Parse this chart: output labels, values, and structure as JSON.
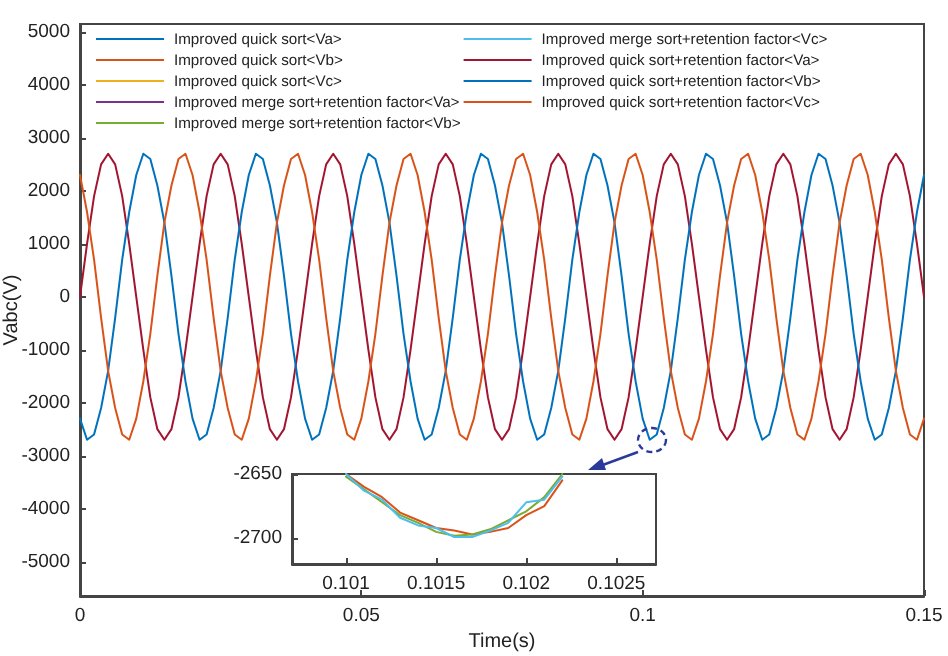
{
  "chart_data": [
    {
      "type": "line",
      "xlabel": "Time(s)",
      "ylabel": "Vabc(V)",
      "legend": "top",
      "xlim": [
        0,
        0.15
      ],
      "xticks": [
        0,
        0.05,
        0.1,
        0.15
      ],
      "ylim": [
        -5650,
        5150
      ],
      "yticks": [
        -5000,
        -4000,
        -3000,
        -2000,
        -1000,
        0,
        1000,
        2000,
        3000,
        4000,
        5000
      ],
      "x": [
        0,
        0.00125,
        0.0025,
        0.00375,
        0.005,
        0.00625,
        0.0075,
        0.00875,
        0.01,
        0.01125,
        0.0125,
        0.01375,
        0.015,
        0.01625,
        0.0175,
        0.01875,
        0.02,
        0.02125,
        0.0225,
        0.02375,
        0.025,
        0.02625,
        0.0275,
        0.02875,
        0.03,
        0.03125,
        0.0325,
        0.03375,
        0.035,
        0.03625,
        0.0375,
        0.03875,
        0.04,
        0.04125,
        0.0425,
        0.04375,
        0.045,
        0.04625,
        0.0475,
        0.04875,
        0.05,
        0.05125,
        0.0525,
        0.05375,
        0.055,
        0.05625,
        0.0575,
        0.05875,
        0.06,
        0.06125,
        0.0625,
        0.06375,
        0.065,
        0.06625,
        0.0675,
        0.06875,
        0.07,
        0.07125,
        0.0725,
        0.07375,
        0.075,
        0.07625,
        0.0775,
        0.07875,
        0.08,
        0.08125,
        0.0825,
        0.08375,
        0.085,
        0.08625,
        0.0875,
        0.08875,
        0.09,
        0.09125,
        0.0925,
        0.09375,
        0.095,
        0.09625,
        0.0975,
        0.09875,
        0.1,
        0.10125,
        0.1025,
        0.10375,
        0.105,
        0.10625,
        0.1075,
        0.10875,
        0.11,
        0.11125,
        0.1125,
        0.11375,
        0.115,
        0.11625,
        0.1175,
        0.11875,
        0.12,
        0.12125,
        0.1225,
        0.12375,
        0.125,
        0.12625,
        0.1275,
        0.12875,
        0.13,
        0.13125,
        0.1325,
        0.13375,
        0.135,
        0.13625,
        0.1375,
        0.13875,
        0.14,
        0.14125,
        0.1425,
        0.14375,
        0.145,
        0.14625,
        0.1475,
        0.14875,
        0.15
      ],
      "series": [
        {
          "name": "Improved quick sort<Va>",
          "color": "#0072bd",
          "values": [
            null,
            null,
            null,
            null,
            null,
            null,
            null,
            null,
            null,
            null,
            null,
            null,
            null,
            null,
            null,
            null,
            null,
            null,
            null,
            null,
            null,
            null,
            null,
            null,
            null,
            null,
            null,
            null,
            null,
            null,
            null,
            null,
            null,
            null,
            null,
            null,
            null,
            null,
            null,
            null,
            null,
            null,
            null,
            null,
            null,
            null,
            null,
            null,
            null,
            null,
            null,
            null,
            null,
            null,
            null,
            null,
            null,
            null,
            null,
            null,
            null,
            null,
            null,
            null,
            null,
            null,
            null,
            null,
            null,
            null,
            null,
            null,
            null,
            null,
            null,
            null,
            null,
            null,
            null,
            null,
            null,
            null,
            null,
            null,
            null,
            null,
            null,
            null,
            null,
            null,
            null,
            null,
            null,
            null,
            null,
            null,
            null,
            null,
            null,
            null,
            null,
            null,
            null,
            null,
            null,
            null,
            null,
            null,
            null,
            null,
            null,
            null,
            null,
            null,
            null,
            null,
            null,
            null,
            null,
            null,
            null
          ]
        },
        {
          "name": "Improved quick sort<Vb>",
          "color": "#d95319",
          "values": [
            null,
            null,
            null,
            null,
            null,
            null,
            null,
            null,
            null,
            null,
            null,
            null,
            null,
            null,
            null,
            null,
            null,
            null,
            null,
            null,
            null,
            null,
            null,
            null,
            null,
            null,
            null,
            null,
            null,
            null,
            null,
            null,
            null,
            null,
            null,
            null,
            null,
            null,
            null,
            null,
            null,
            null,
            null,
            null,
            null,
            null,
            null,
            null,
            null,
            null,
            null,
            null,
            null,
            null,
            null,
            null,
            null,
            null,
            null,
            null,
            null,
            null,
            null,
            null,
            null,
            null,
            null,
            null,
            null,
            null,
            null,
            null,
            null,
            null,
            null,
            null,
            null,
            null,
            null,
            null,
            null,
            null,
            null,
            null,
            null,
            null,
            null,
            null,
            null,
            null,
            null,
            null,
            null,
            null,
            null,
            null,
            null,
            null,
            null,
            null,
            null,
            null,
            null,
            null,
            null,
            null,
            null,
            null,
            null,
            null,
            null,
            null,
            null,
            null,
            null,
            null,
            null,
            null,
            null,
            null,
            null
          ]
        },
        {
          "name": "Improved quick sort<Vc>",
          "color": "#edb120",
          "values": [
            null,
            null,
            null,
            null,
            null,
            null,
            null,
            null,
            null,
            null,
            null,
            null,
            null,
            null,
            null,
            null,
            null,
            null,
            null,
            null,
            null,
            null,
            null,
            null,
            null,
            null,
            null,
            null,
            null,
            null,
            null,
            null,
            null,
            null,
            null,
            null,
            null,
            null,
            null,
            null,
            null,
            null,
            null,
            null,
            null,
            null,
            null,
            null,
            null,
            null,
            null,
            null,
            null,
            null,
            null,
            null,
            null,
            null,
            null,
            null,
            null,
            null,
            null,
            null,
            null,
            null,
            null,
            null,
            null,
            null,
            null,
            null,
            null,
            null,
            null,
            null,
            null,
            null,
            null,
            null,
            null,
            null,
            null,
            null,
            null,
            null,
            null,
            null,
            null,
            null,
            null,
            null,
            null,
            null,
            null,
            null,
            null,
            null,
            null,
            null,
            null,
            null,
            null,
            null,
            null,
            null,
            null,
            null,
            null,
            null,
            null,
            null,
            null,
            null,
            null,
            null,
            null,
            null,
            null,
            null,
            null
          ]
        },
        {
          "name": "Improved merge sort+retention factor<Va>",
          "color": "#7e2f8e",
          "values": [
            null,
            null,
            null,
            null,
            null,
            null,
            null,
            null,
            null,
            null,
            null,
            null,
            null,
            null,
            null,
            null,
            null,
            null,
            null,
            null,
            null,
            null,
            null,
            null,
            null,
            null,
            null,
            null,
            null,
            null,
            null,
            null,
            null,
            null,
            null,
            null,
            null,
            null,
            null,
            null,
            null,
            null,
            null,
            null,
            null,
            null,
            null,
            null,
            null,
            null,
            null,
            null,
            null,
            null,
            null,
            null,
            null,
            null,
            null,
            null,
            null,
            null,
            null,
            null,
            null,
            null,
            null,
            null,
            null,
            null,
            null,
            null,
            null,
            null,
            null,
            null,
            null,
            null,
            null,
            null,
            null,
            null,
            null,
            null,
            null,
            null,
            null,
            null,
            null,
            null,
            null,
            null,
            null,
            null,
            null,
            null,
            null,
            null,
            null,
            null,
            null,
            null,
            null,
            null,
            null,
            null,
            null,
            null,
            null,
            null,
            null,
            null,
            null,
            null,
            null,
            null,
            null,
            null,
            null,
            null,
            null
          ]
        },
        {
          "name": "Improved merge sort+retention factor<Vb>",
          "color": "#77ac30",
          "values": [
            null,
            null,
            null,
            null,
            null,
            null,
            null,
            null,
            null,
            null,
            null,
            null,
            null,
            null,
            null,
            null,
            null,
            null,
            null,
            null,
            null,
            null,
            null,
            null,
            null,
            null,
            null,
            null,
            null,
            null,
            null,
            null,
            null,
            null,
            null,
            null,
            null,
            null,
            null,
            null,
            null,
            null,
            null,
            null,
            null,
            null,
            null,
            null,
            null,
            null,
            null,
            null,
            null,
            null,
            null,
            null,
            null,
            null,
            null,
            null,
            null,
            null,
            null,
            null,
            null,
            null,
            null,
            null,
            null,
            null,
            null,
            null,
            null,
            null,
            null,
            null,
            null,
            null,
            null,
            null,
            null,
            null,
            null,
            null,
            null,
            null,
            null,
            null,
            null,
            null,
            null,
            null,
            null,
            null,
            null,
            null,
            null,
            null,
            null,
            null,
            null,
            null,
            null,
            null,
            null,
            null,
            null,
            null,
            null,
            null,
            null,
            null,
            null,
            null,
            null,
            null,
            null,
            null,
            null,
            null,
            null
          ]
        },
        {
          "name": "Improved merge sort+retention factor<Vc>",
          "color": "#4dbeee",
          "values": [
            null,
            null,
            null,
            null,
            null,
            null,
            null,
            null,
            null,
            null,
            null,
            null,
            null,
            null,
            null,
            null,
            null,
            null,
            null,
            null,
            null,
            null,
            null,
            null,
            null,
            null,
            null,
            null,
            null,
            null,
            null,
            null,
            null,
            null,
            null,
            null,
            null,
            null,
            null,
            null,
            null,
            null,
            null,
            null,
            null,
            null,
            null,
            null,
            null,
            null,
            null,
            null,
            null,
            null,
            null,
            null,
            null,
            null,
            null,
            null,
            null,
            null,
            null,
            null,
            null,
            null,
            null,
            null,
            null,
            null,
            null,
            null,
            null,
            null,
            null,
            null,
            null,
            null,
            null,
            null,
            null,
            null,
            null,
            null,
            null,
            null,
            null,
            null,
            null,
            null,
            null,
            null,
            null,
            null,
            null,
            null,
            null,
            null,
            null,
            null,
            null,
            null,
            null,
            null,
            null,
            null,
            null,
            null,
            null,
            null,
            null,
            null,
            null,
            null,
            null,
            null,
            null,
            null,
            null,
            null,
            null
          ]
        },
        {
          "name": "Improved quick sort+retention factor<Va>",
          "color": "#a2142f",
          "values": [
            0,
            1000,
            1900,
            2500,
            2700,
            2500,
            1900,
            1000,
            0,
            -1000,
            -1900,
            -2500,
            -2700,
            -2500,
            -1900,
            -1000,
            0,
            1000,
            1900,
            2500,
            2700,
            2500,
            1900,
            1000,
            0,
            -1000,
            -1900,
            -2500,
            -2700,
            -2500,
            -1900,
            -1000,
            0,
            1000,
            1900,
            2500,
            2700,
            2500,
            1900,
            1000,
            0,
            -1000,
            -1900,
            -2500,
            -2700,
            -2500,
            -1900,
            -1000,
            0,
            1000,
            1900,
            2500,
            2700,
            2500,
            1900,
            1000,
            0,
            -1000,
            -1900,
            -2500,
            -2700,
            -2500,
            -1900,
            -1000,
            0,
            1000,
            1900,
            2500,
            2700,
            2500,
            1900,
            1000,
            0,
            -1000,
            -1900,
            -2500,
            -2700,
            -2500,
            -1900,
            -1000,
            0,
            1000,
            1900,
            2500,
            2700,
            2500,
            1900,
            1000,
            0,
            -1000,
            -1900,
            -2500,
            -2700,
            -2500,
            -1900,
            -1000,
            0,
            1000,
            1900,
            2500,
            2700,
            2500,
            1900,
            1000,
            0,
            -1000,
            -1900,
            -2500,
            -2700,
            -2500,
            -1900,
            -1000,
            0,
            1000,
            1900,
            2500,
            2700,
            2500,
            1900,
            1000,
            0
          ]
        },
        {
          "name": "Improved quick sort+retention factor<Vb>",
          "color": "#0072bd",
          "values": [
            -2300,
            -2700,
            -2600,
            -2100,
            -1400,
            -400,
            700,
            1600,
            2300,
            2700,
            2600,
            2100,
            1400,
            400,
            -700,
            -1600,
            -2300,
            -2700,
            -2600,
            -2100,
            -1400,
            -400,
            700,
            1600,
            2300,
            2700,
            2600,
            2100,
            1400,
            400,
            -700,
            -1600,
            -2300,
            -2700,
            -2600,
            -2100,
            -1400,
            -400,
            700,
            1600,
            2300,
            2700,
            2600,
            2100,
            1400,
            400,
            -700,
            -1600,
            -2300,
            -2700,
            -2600,
            -2100,
            -1400,
            -400,
            700,
            1600,
            2300,
            2700,
            2600,
            2100,
            1400,
            400,
            -700,
            -1600,
            -2300,
            -2700,
            -2600,
            -2100,
            -1400,
            -400,
            700,
            1600,
            2300,
            2700,
            2600,
            2100,
            1400,
            400,
            -700,
            -1600,
            -2300,
            -2700,
            -2600,
            -2100,
            -1400,
            -400,
            700,
            1600,
            2300,
            2700,
            2600,
            2100,
            1400,
            400,
            -700,
            -1600,
            -2300,
            -2700,
            -2600,
            -2100,
            -1400,
            -400,
            700,
            1600,
            2300,
            2700,
            2600,
            2100,
            1400,
            400,
            -700,
            -1600,
            -2300,
            -2700,
            -2600,
            -2100,
            -1400,
            -400,
            700,
            1600,
            2300
          ]
        },
        {
          "name": "Improved quick sort+retention factor<Vc>",
          "color": "#d95319",
          "values": [
            2300,
            1600,
            700,
            -400,
            -1400,
            -2100,
            -2600,
            -2700,
            -2300,
            -1600,
            -700,
            400,
            1400,
            2100,
            2600,
            2700,
            2300,
            1600,
            700,
            -400,
            -1400,
            -2100,
            -2600,
            -2700,
            -2300,
            -1600,
            -700,
            400,
            1400,
            2100,
            2600,
            2700,
            2300,
            1600,
            700,
            -400,
            -1400,
            -2100,
            -2600,
            -2700,
            -2300,
            -1600,
            -700,
            400,
            1400,
            2100,
            2600,
            2700,
            2300,
            1600,
            700,
            -400,
            -1400,
            -2100,
            -2600,
            -2700,
            -2300,
            -1600,
            -700,
            400,
            1400,
            2100,
            2600,
            2700,
            2300,
            1600,
            700,
            -400,
            -1400,
            -2100,
            -2600,
            -2700,
            -2300,
            -1600,
            -700,
            400,
            1400,
            2100,
            2600,
            2700,
            2300,
            1600,
            700,
            -400,
            -1400,
            -2100,
            -2600,
            -2700,
            -2300,
            -1600,
            -700,
            400,
            1400,
            2100,
            2600,
            2700,
            2300,
            1600,
            700,
            -400,
            -1400,
            -2100,
            -2600,
            -2700,
            -2300,
            -1600,
            -700,
            400,
            1400,
            2100,
            2600,
            2700,
            2300,
            1600,
            700,
            -400,
            -1400,
            -2100,
            -2600,
            -2700,
            -2300
          ]
        }
      ]
    },
    {
      "type": "line",
      "xlim": [
        0.1007,
        0.10272
      ],
      "xticks": [
        0.101,
        0.1015,
        0.102,
        0.1025
      ],
      "ylim": [
        -2720,
        -2650
      ],
      "yticks": [
        -2700,
        -2650
      ],
      "x": [
        0.101,
        0.1011,
        0.1012,
        0.1013,
        0.1014,
        0.1015,
        0.1016,
        0.1017,
        0.1018,
        0.1019,
        0.102,
        0.1021,
        0.1022
      ],
      "series": [
        {
          "color": "#d95319",
          "values": [
            -2650,
            -2660,
            -2668,
            -2680,
            -2686,
            -2692,
            -2694,
            -2697,
            -2695,
            -2692,
            -2682,
            -2675,
            -2655
          ]
        },
        {
          "color": "#77ac30",
          "values": [
            -2652,
            -2662,
            -2672,
            -2682,
            -2688,
            -2695,
            -2698,
            -2697,
            -2693,
            -2686,
            -2679,
            -2668,
            -2650
          ]
        },
        {
          "color": "#4dbeee",
          "values": [
            -2650,
            -2663,
            -2670,
            -2684,
            -2690,
            -2692,
            -2699,
            -2699,
            -2694,
            -2688,
            -2672,
            -2670,
            -2652
          ]
        }
      ]
    }
  ]
}
